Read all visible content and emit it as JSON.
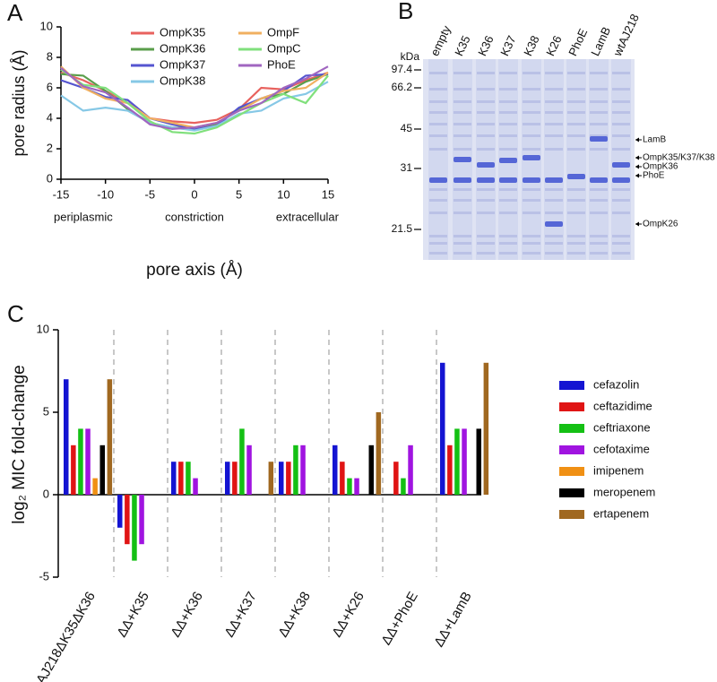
{
  "panel_labels": [
    "A",
    "B",
    "C"
  ],
  "chart_data": [
    {
      "type": "line",
      "xlabel": "pore axis (Å)",
      "ylabel": "pore radius (Å)",
      "annotations": [
        "periplasmic",
        "constriction",
        "extracellular"
      ],
      "x": [
        -15,
        -12.5,
        -10,
        -7.5,
        -5,
        -2.5,
        0,
        2.5,
        5,
        7.5,
        10,
        12.5,
        15
      ],
      "xlim": [
        -15,
        15
      ],
      "xticks": [
        -15,
        -10,
        -5,
        0,
        5,
        10,
        15
      ],
      "ylim": [
        0,
        10
      ],
      "yticks": [
        0,
        2,
        4,
        6,
        8,
        10
      ],
      "series": [
        {
          "name": "OmpK35",
          "color": "#e8625e",
          "values": [
            7.0,
            6.5,
            5.8,
            5.0,
            4.0,
            3.8,
            3.7,
            3.9,
            4.6,
            6.0,
            5.9,
            6.5,
            7.0
          ]
        },
        {
          "name": "OmpK36",
          "color": "#5a9e4b",
          "values": [
            6.9,
            6.8,
            5.8,
            4.6,
            3.7,
            3.4,
            3.3,
            3.6,
            4.6,
            5.3,
            5.6,
            6.4,
            6.9
          ]
        },
        {
          "name": "OmpK37",
          "color": "#5555d0",
          "values": [
            6.5,
            6.0,
            5.4,
            5.2,
            4.0,
            3.6,
            3.3,
            3.5,
            4.7,
            5.3,
            5.8,
            6.8,
            6.9
          ]
        },
        {
          "name": "OmpK38",
          "color": "#86c8e6",
          "values": [
            5.5,
            4.5,
            4.7,
            4.5,
            3.7,
            3.4,
            3.2,
            3.5,
            4.3,
            4.5,
            5.3,
            5.6,
            6.4
          ]
        },
        {
          "name": "OmpF",
          "color": "#f0b060",
          "values": [
            7.4,
            6.0,
            5.3,
            5.0,
            4.0,
            3.7,
            3.4,
            3.7,
            4.5,
            5.3,
            5.8,
            6.0,
            7.0
          ]
        },
        {
          "name": "OmpC",
          "color": "#80e07c",
          "values": [
            7.2,
            6.2,
            6.0,
            5.0,
            3.8,
            3.1,
            3.0,
            3.4,
            4.2,
            5.0,
            5.6,
            5.0,
            6.8
          ]
        },
        {
          "name": "PhoE",
          "color": "#a066c0",
          "values": [
            7.3,
            6.1,
            5.7,
            4.7,
            3.6,
            3.3,
            3.4,
            3.7,
            4.5,
            5.0,
            6.0,
            6.6,
            7.4
          ]
        }
      ]
    },
    {
      "type": "gel",
      "y_unit": "kDa",
      "lanes": [
        "empty",
        "K35",
        "K36",
        "K37",
        "K38",
        "K26",
        "PhoE",
        "LamB",
        "wtAJ218"
      ],
      "markers": [
        97.4,
        66.2,
        45,
        31,
        21.5
      ],
      "band_labels": [
        "LamB",
        "OmpK35/K37/K38",
        "OmpK36",
        "PhoE",
        "OmpK26"
      ]
    },
    {
      "type": "bar",
      "ylabel": "log₂ MIC fold-change",
      "categories": [
        "AJ218ΔK35ΔK36",
        "ΔΔ+K35",
        "ΔΔ+K36",
        "ΔΔ+K37",
        "ΔΔ+K38",
        "ΔΔ+K26",
        "ΔΔ+PhoE",
        "ΔΔ+LamB"
      ],
      "ylim": [
        -5,
        10
      ],
      "yticks": [
        -5,
        0,
        5,
        10
      ],
      "series": [
        {
          "name": "cefazolin",
          "color": "#1414d2",
          "values": [
            7,
            -2,
            2,
            2,
            2,
            3,
            0,
            8
          ]
        },
        {
          "name": "ceftazidime",
          "color": "#e01414",
          "values": [
            3,
            -3,
            2,
            2,
            2,
            2,
            2,
            3
          ]
        },
        {
          "name": "ceftriaxone",
          "color": "#14c014",
          "values": [
            4,
            -4,
            2,
            4,
            3,
            1,
            1,
            4
          ]
        },
        {
          "name": "cefotaxime",
          "color": "#a014e0",
          "values": [
            4,
            -3,
            1,
            3,
            3,
            1,
            3,
            4
          ]
        },
        {
          "name": "imipenem",
          "color": "#f09014",
          "values": [
            1,
            0,
            0,
            0,
            0,
            0,
            0,
            0
          ]
        },
        {
          "name": "meropenem",
          "color": "#000000",
          "values": [
            3,
            0,
            0,
            0,
            0,
            3,
            0,
            4
          ]
        },
        {
          "name": "ertapenem",
          "color": "#a06820",
          "values": [
            7,
            0,
            0,
            2,
            0,
            5,
            0,
            8
          ]
        }
      ]
    }
  ]
}
